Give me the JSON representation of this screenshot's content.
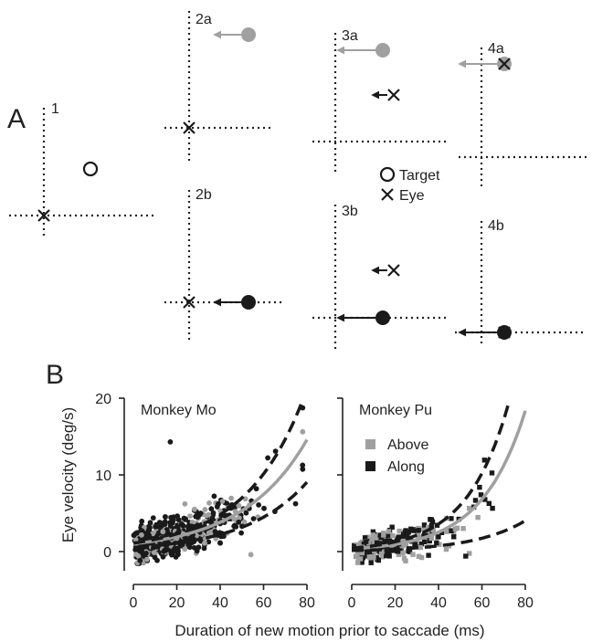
{
  "panel_a": {
    "letter": "A",
    "subpanels": [
      "1",
      "2a",
      "2b",
      "3a",
      "3b",
      "4a",
      "4b"
    ],
    "legend": {
      "target": "Target",
      "eye": "Eye"
    },
    "colors": {
      "gray": "#a0a0a0",
      "black": "#1a1a1a"
    }
  },
  "panel_b": {
    "letter": "B",
    "ylabel": "Eye velocity (deg/s)",
    "xlabel": "Duration of new motion prior to saccade (ms)",
    "x_ticks": [
      "0",
      "20",
      "40",
      "60",
      "80"
    ],
    "y_ticks": [
      "0",
      "10",
      "20"
    ],
    "legend": {
      "above": "Above",
      "along": "Along"
    }
  },
  "chart_data": [
    {
      "type": "scatter",
      "title": "Monkey Mo",
      "xlabel": "Duration of new motion prior to saccade (ms)",
      "ylabel": "Eye velocity (deg/s)",
      "xlim": [
        0,
        80
      ],
      "ylim": [
        -2,
        20
      ],
      "series": [
        {
          "name": "Above",
          "color": "#a0a0a0"
        },
        {
          "name": "Along",
          "color": "#1a1a1a"
        }
      ],
      "fit_mean": {
        "a": 1.0,
        "b": 0.0335,
        "color": "#a0a0a0"
      },
      "fit_upper": {
        "a": 1.1,
        "b": 0.037,
        "color": "#1a1a1a"
      },
      "fit_lower": {
        "a": 0.55,
        "b": 0.035,
        "color": "#1a1a1a"
      },
      "notable_points": [
        {
          "x": 17,
          "y": 14.3
        }
      ]
    },
    {
      "type": "scatter",
      "title": "Monkey Pu",
      "xlabel": "Duration of new motion prior to saccade (ms)",
      "ylabel": "Eye velocity (deg/s)",
      "xlim": [
        0,
        80
      ],
      "ylim": [
        -2,
        20
      ],
      "series": [
        {
          "name": "Above",
          "color": "#a0a0a0"
        },
        {
          "name": "Along",
          "color": "#1a1a1a"
        }
      ],
      "fit_mean": {
        "a": 0.35,
        "b": 0.0495,
        "color": "#a0a0a0"
      },
      "fit_upper": {
        "a": 0.45,
        "b": 0.052,
        "color": "#1a1a1a"
      },
      "fit_lower": {
        "a": 0.14,
        "b": 0.042,
        "color": "#1a1a1a"
      }
    }
  ]
}
